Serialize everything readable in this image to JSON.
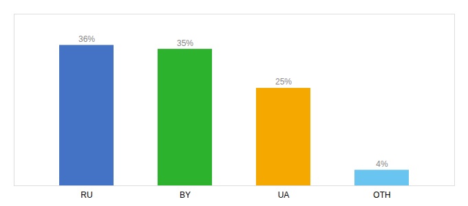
{
  "chart_data": {
    "type": "bar",
    "categories": [
      "RU",
      "BY",
      "UA",
      "OTH"
    ],
    "values": [
      36,
      35,
      25,
      4
    ],
    "value_labels": [
      "36%",
      "35%",
      "25%",
      "4%"
    ],
    "colors": [
      "#4472c4",
      "#2db22d",
      "#f5a800",
      "#69c4f0"
    ],
    "ylim": [
      0,
      44
    ],
    "grid": false,
    "data_labels": true,
    "tick_labels": "x"
  }
}
